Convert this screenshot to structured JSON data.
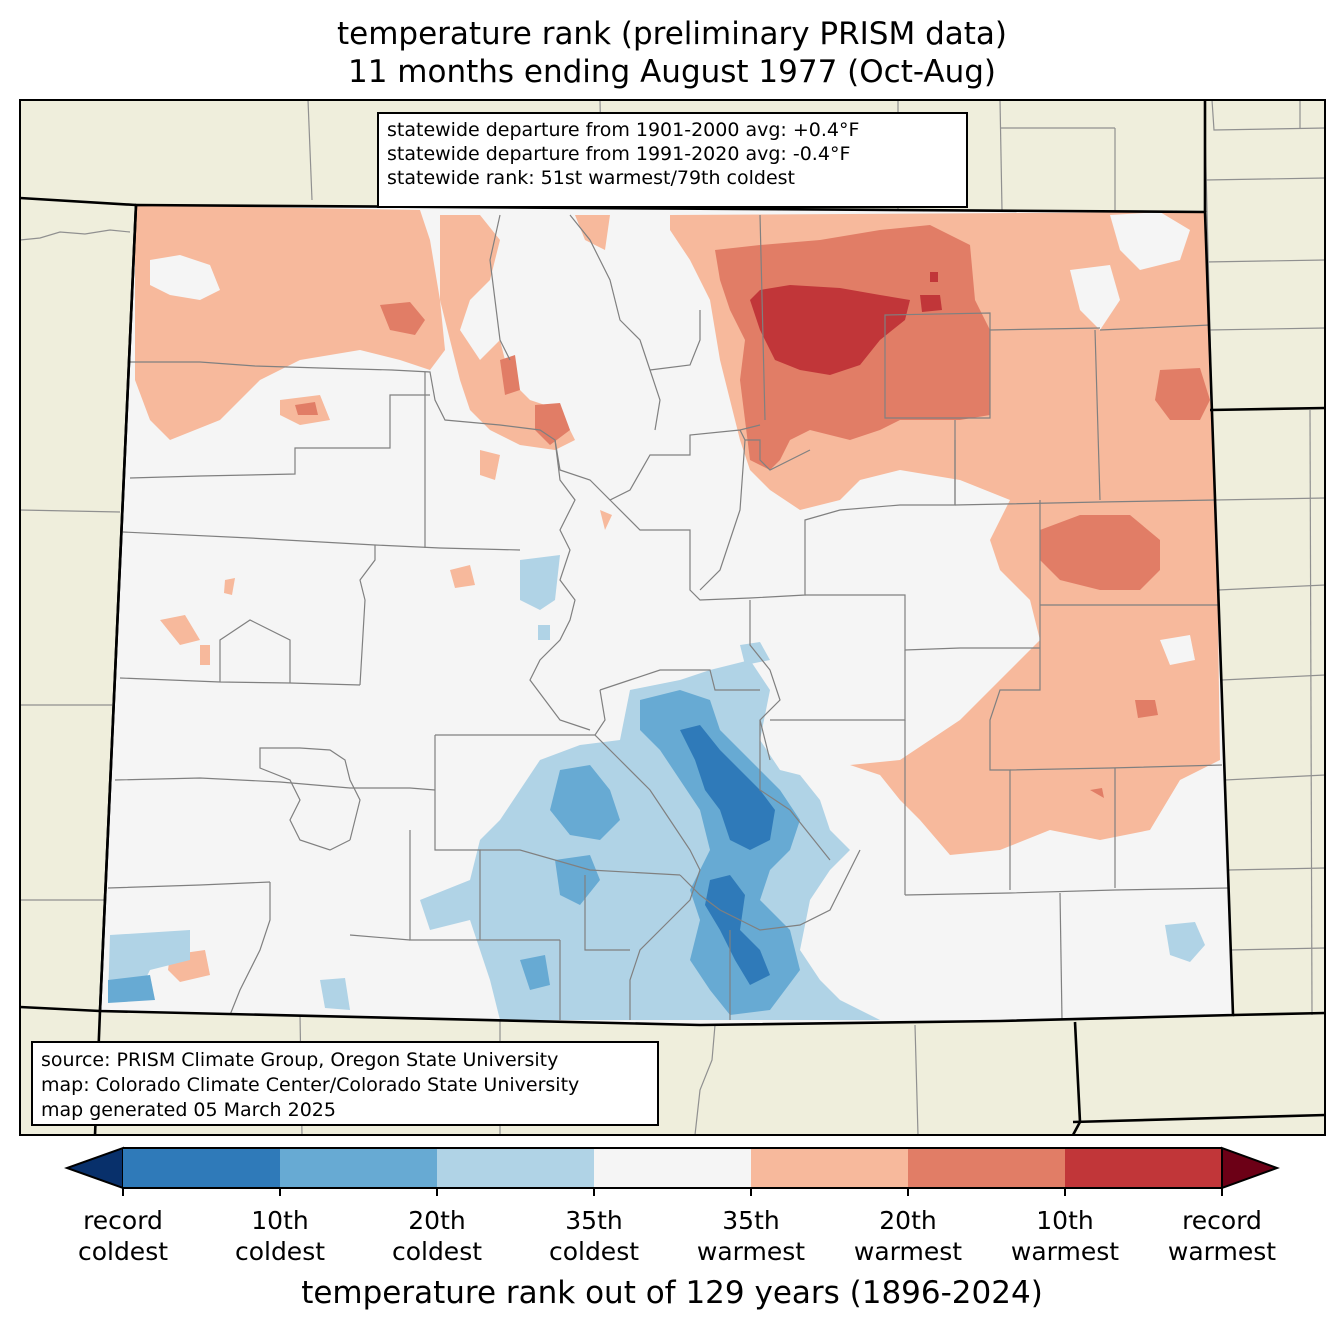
{
  "title": {
    "line1": "temperature rank (preliminary PRISM data)",
    "line2": "11 months ending August 1977 (Oct-Aug)"
  },
  "stats": {
    "line1": "statewide departure from 1901-2000 avg: +0.4°F",
    "line2": "statewide departure from 1991-2020 avg: -0.4°F",
    "line3": "statewide rank: 51st warmest/79th coldest"
  },
  "source": {
    "line1": "source: PRISM Climate Group, Oregon State University",
    "line2": "map: Colorado Climate Center/Colorado State University",
    "line3": "map generated 05 March 2025"
  },
  "colorbar": {
    "label": "temperature rank out of 129 years (1896-2024)",
    "ticks": [
      {
        "line1": "record",
        "line2": "coldest"
      },
      {
        "line1": "10th",
        "line2": "coldest"
      },
      {
        "line1": "20th",
        "line2": "coldest"
      },
      {
        "line1": "35th",
        "line2": "coldest"
      },
      {
        "line1": "35th",
        "line2": "warmest"
      },
      {
        "line1": "20th",
        "line2": "warmest"
      },
      {
        "line1": "10th",
        "line2": "warmest"
      },
      {
        "line1": "record",
        "line2": "warmest"
      }
    ],
    "colors": {
      "under": "#08306b",
      "bins": [
        "#2f7ab9",
        "#67aad3",
        "#b0d3e6",
        "#f5f5f5",
        "#f7b99c",
        "#e17d66",
        "#c13639"
      ],
      "over": "#6c0016"
    }
  },
  "map_colors": {
    "land_outside": "#efeedc",
    "state_border": "#000000",
    "county_border": "#808080"
  }
}
